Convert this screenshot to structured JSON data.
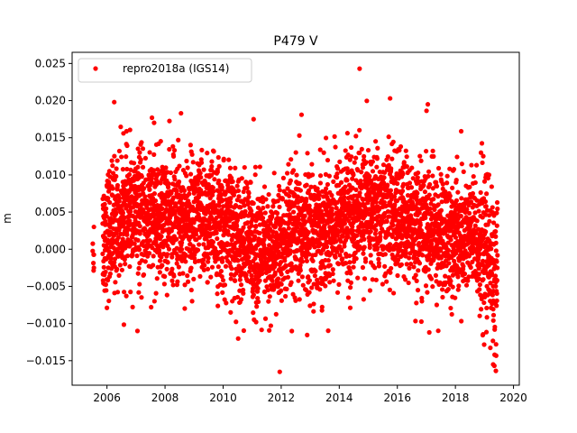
{
  "chart_data": {
    "type": "scatter",
    "title": "P479 V",
    "xlabel": "",
    "ylabel": "m",
    "xlim": [
      2004.8,
      2020.2
    ],
    "ylim": [
      -0.0183,
      0.0265
    ],
    "xticks": [
      2006,
      2008,
      2010,
      2012,
      2014,
      2016,
      2018,
      2020
    ],
    "xtick_labels": [
      "2006",
      "2008",
      "2010",
      "2012",
      "2014",
      "2016",
      "2018",
      "2020"
    ],
    "yticks": [
      -0.015,
      -0.01,
      -0.005,
      0.0,
      0.005,
      0.01,
      0.015,
      0.02,
      0.025
    ],
    "ytick_labels": [
      "−0.015",
      "−0.010",
      "−0.005",
      "0.000",
      "0.005",
      "0.010",
      "0.015",
      "0.020",
      "0.025"
    ],
    "grid": false,
    "legend_placement": "upper-left",
    "series": [
      {
        "name": "repro2018a (IGS14)",
        "color": "#ff0000",
        "marker": "circle",
        "x_range": [
          2005.5,
          2019.45
        ],
        "trend": {
          "x": [
            2005.5,
            2006.5,
            2008,
            2009.5,
            2010.5,
            2011.5,
            2012.5,
            2013.5,
            2014.5,
            2015.5,
            2016.5,
            2017.5,
            2018.5,
            2019.0,
            2019.45
          ],
          "y": [
            0.0,
            0.0045,
            0.004,
            0.004,
            0.002,
            -0.001,
            0.002,
            0.003,
            0.005,
            0.005,
            0.0035,
            0.002,
            0.002,
            0.0,
            -0.004
          ]
        },
        "noise_std": 0.0042,
        "notable_points": [
          {
            "x": 2014.7,
            "y": 0.0243
          },
          {
            "x": 2015.75,
            "y": 0.0203
          },
          {
            "x": 2006.25,
            "y": 0.0198
          },
          {
            "x": 2017.05,
            "y": 0.0195
          },
          {
            "x": 2008.55,
            "y": 0.0183
          },
          {
            "x": 2012.7,
            "y": 0.0181
          },
          {
            "x": 2007.55,
            "y": 0.0177
          },
          {
            "x": 2011.05,
            "y": 0.0175
          },
          {
            "x": 2007.05,
            "y": -0.011
          },
          {
            "x": 2011.95,
            "y": -0.0165
          },
          {
            "x": 2017.1,
            "y": -0.0112
          },
          {
            "x": 2019.3,
            "y": -0.0155
          },
          {
            "x": 2019.35,
            "y": -0.0142
          },
          {
            "x": 2019.4,
            "y": -0.0128
          },
          {
            "x": 2005.55,
            "y": 0.003
          },
          {
            "x": 2005.55,
            "y": -0.0025
          }
        ]
      }
    ]
  }
}
